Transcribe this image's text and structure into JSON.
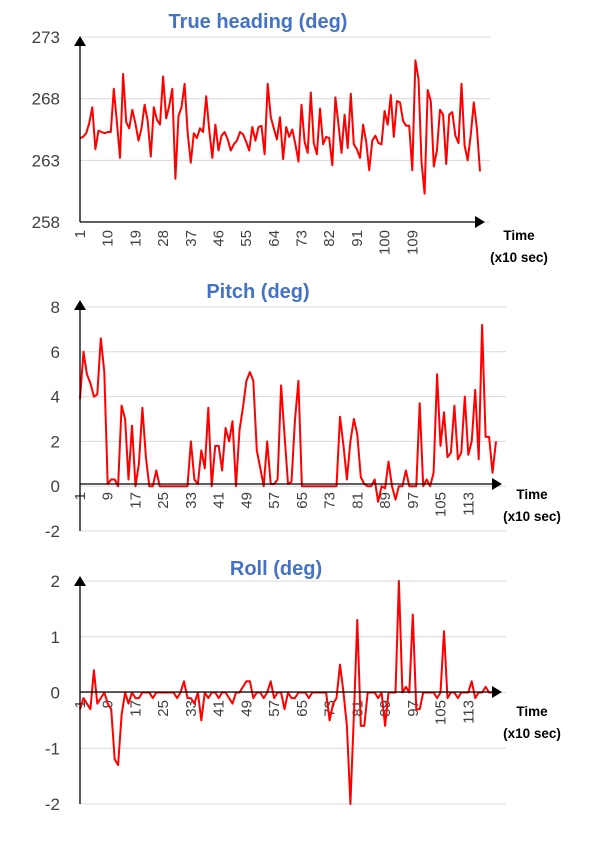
{
  "colors": {
    "series": "#ff0000",
    "title": "#4472c4",
    "axis": "#000000",
    "grid": "#d9d9d9"
  },
  "chart_data": [
    {
      "type": "line",
      "title": "True heading (deg)",
      "xlabel": "Time",
      "xlabel_unit": "(x10 sec)",
      "ylim": [
        258,
        273
      ],
      "yticks": [
        "273",
        "268",
        "263",
        "258"
      ],
      "grid": "horizontal",
      "xticks": [
        "1",
        "10",
        "19",
        "28",
        "37",
        "46",
        "55",
        "64",
        "73",
        "82",
        "91",
        "100",
        "109"
      ],
      "series": [
        {
          "values": [
            264.8,
            264.9,
            265.2,
            266.0,
            267.3,
            263.9,
            265.4,
            265.3,
            265.2,
            265.3,
            265.3,
            268.8,
            266.1,
            263.2,
            270.0,
            266.1,
            265.6,
            267.1,
            266.0,
            264.6,
            265.6,
            267.5,
            266.2,
            263.3,
            267.3,
            266.3,
            265.9,
            269.8,
            266.4,
            267.4,
            268.8,
            261.5,
            266.6,
            267.3,
            269.2,
            265.2,
            262.8,
            265.2,
            264.8,
            265.6,
            265.3,
            268.2,
            265.5,
            263.2,
            265.9,
            263.8,
            265.0,
            265.3,
            264.7,
            263.8,
            264.3,
            264.6,
            265.3,
            265.1,
            264.5,
            263.8,
            265.7,
            264.6,
            265.7,
            265.8,
            263.5,
            269.2,
            266.5,
            265.6,
            264.7,
            266.5,
            263.1,
            265.7,
            264.9,
            265.5,
            264.3,
            262.9,
            267.5,
            264.5,
            263.6,
            268.5,
            264.4,
            263.5,
            267.2,
            264.3,
            264.9,
            264.8,
            262.6,
            268.1,
            265.9,
            263.6,
            266.7,
            264.0,
            268.4,
            264.3,
            263.9,
            263.2,
            265.9,
            264.5,
            262.2,
            264.6,
            265.0,
            264.4,
            264.3,
            267.0,
            265.9,
            268.3,
            264.9,
            267.8,
            267.7,
            266.2,
            265.8,
            265.8,
            262.2,
            271.1,
            269.6,
            262.9,
            260.3,
            268.7,
            267.8,
            262.5,
            263.8,
            267.1,
            266.7,
            262.7,
            266.7,
            266.9,
            265.0,
            264.4,
            269.2,
            264.2,
            263.0,
            265.1,
            267.7,
            265.6,
            262.1
          ]
        }
      ]
    },
    {
      "type": "line",
      "title": "Pitch (deg)",
      "xlabel": "Time",
      "xlabel_unit": "(x10 sec)",
      "ylim": [
        -2,
        8
      ],
      "yticks": [
        "8",
        "6",
        "4",
        "2",
        "0",
        "-2"
      ],
      "grid": "horizontal",
      "xticks": [
        "1",
        "9",
        "17",
        "25",
        "33",
        "41",
        "49",
        "57",
        "65",
        "73",
        "81",
        "89",
        "97",
        "105",
        "113"
      ],
      "series": [
        {
          "values": [
            3.9,
            6.0,
            5.0,
            4.6,
            4.0,
            4.1,
            6.6,
            5.1,
            0.1,
            0.3,
            0.3,
            0.0,
            3.6,
            3.0,
            0.3,
            2.7,
            0.0,
            1.0,
            3.5,
            1.3,
            0.0,
            0.0,
            0.7,
            0.0,
            0.0,
            0.0,
            0.0,
            0.0,
            0.0,
            0.0,
            0.0,
            0.0,
            2.0,
            0.3,
            0.1,
            1.6,
            0.8,
            3.5,
            0.0,
            1.8,
            1.8,
            0.7,
            2.6,
            2.0,
            2.9,
            0.0,
            2.5,
            3.5,
            4.7,
            5.1,
            4.7,
            1.6,
            0.8,
            0.0,
            2.0,
            0.1,
            0.1,
            0.3,
            4.5,
            2.3,
            0.1,
            0.2,
            2.9,
            4.7,
            0.0,
            0.0,
            0.0,
            0.0,
            0.0,
            0.0,
            0.0,
            0.0,
            0.0,
            0.0,
            0.0,
            3.1,
            1.8,
            0.3,
            2.0,
            3.0,
            2.3,
            0.4,
            0.1,
            0.0,
            0.0,
            0.3,
            -0.7,
            0.0,
            -0.1,
            1.1,
            0.0,
            -0.6,
            0.0,
            0.0,
            0.7,
            0.0,
            0.0,
            0.0,
            3.7,
            0.0,
            0.3,
            0.0,
            0.6,
            5.0,
            1.8,
            3.3,
            1.3,
            1.5,
            3.6,
            1.2,
            1.5,
            4.0,
            1.4,
            2.0,
            4.3,
            1.2,
            7.2,
            2.2,
            2.2,
            0.6,
            2.0
          ]
        }
      ]
    },
    {
      "type": "line",
      "title": "Roll (deg)",
      "xlabel": "Time",
      "xlabel_unit": "(x10 sec)",
      "ylim": [
        -2,
        2
      ],
      "yticks": [
        "2",
        "1",
        "0",
        "-1",
        "-2"
      ],
      "grid": "horizontal",
      "xticks": [
        "1",
        "9",
        "17",
        "25",
        "33",
        "41",
        "49",
        "57",
        "65",
        "73",
        "81",
        "89",
        "97",
        "105",
        "113"
      ],
      "series": [
        {
          "values": [
            -0.3,
            -0.1,
            -0.2,
            -0.3,
            0.4,
            -0.2,
            -0.1,
            0.0,
            -0.2,
            -0.3,
            -1.2,
            -1.3,
            -0.4,
            0.0,
            -0.2,
            0.0,
            -0.1,
            -0.1,
            0.0,
            0.0,
            0.0,
            -0.1,
            0.0,
            0.0,
            0.0,
            0.0,
            0.0,
            0.0,
            -0.1,
            0.0,
            0.2,
            -0.1,
            -0.1,
            -0.2,
            0.0,
            -0.5,
            0.0,
            -0.1,
            0.0,
            0.0,
            -0.1,
            0.0,
            0.0,
            -0.1,
            -0.2,
            0.0,
            0.0,
            0.1,
            0.2,
            0.2,
            -0.1,
            0.0,
            0.0,
            -0.1,
            0.0,
            0.2,
            -0.1,
            0.0,
            0.0,
            -0.3,
            0.0,
            -0.1,
            -0.1,
            0.0,
            0.0,
            0.0,
            -0.1,
            0.0,
            0.0,
            0.0,
            0.0,
            0.0,
            -0.5,
            -0.2,
            -0.1,
            0.5,
            0.0,
            -0.6,
            -2.0,
            -0.4,
            1.3,
            -0.6,
            -0.6,
            0.0,
            0.0,
            0.0,
            -0.1,
            0.0,
            -0.6,
            0.0,
            0.0,
            0.0,
            2.0,
            0.0,
            0.1,
            0.0,
            1.4,
            -0.3,
            -0.3,
            0.0,
            0.0,
            0.0,
            0.0,
            -0.1,
            0.0,
            1.1,
            -0.1,
            0.0,
            0.0,
            -0.1,
            0.0,
            0.0,
            0.0,
            0.2,
            -0.1,
            0.0,
            0.0,
            0.1,
            0.0,
            0.0,
            0.0
          ]
        }
      ]
    }
  ]
}
